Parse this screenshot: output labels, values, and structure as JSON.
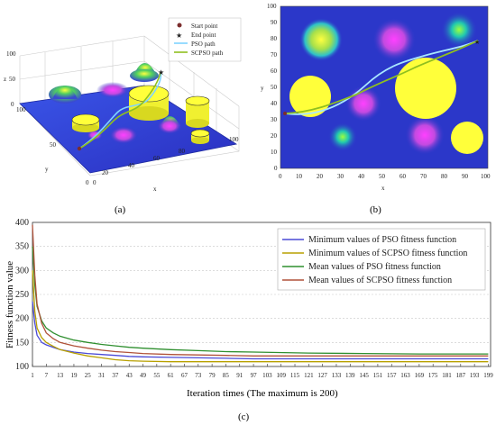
{
  "panel_a": {
    "caption": "(a)",
    "axis_x": "x",
    "axis_y": "y",
    "axis_z": "z",
    "z_ticks": [
      "0",
      "50",
      "100"
    ],
    "x_ticks": [
      "0",
      "20",
      "40",
      "60",
      "80",
      "100"
    ],
    "y_ticks": [
      "0",
      "50",
      "100"
    ],
    "legend": [
      {
        "label": "Start point",
        "marker": "circle",
        "color": "#7b2d2d"
      },
      {
        "label": "End point",
        "marker": "star",
        "color": "#222222"
      },
      {
        "label": "PSO path",
        "marker": "line",
        "color": "#7fd3ff"
      },
      {
        "label": "SCPSO path",
        "marker": "line",
        "color": "#8fbf1f"
      }
    ]
  },
  "panel_b": {
    "caption": "(b)",
    "axis_x": "x",
    "axis_y": "y",
    "x_ticks": [
      "0",
      "10",
      "20",
      "30",
      "40",
      "50",
      "60",
      "70",
      "80",
      "90",
      "100"
    ],
    "y_ticks": [
      "0",
      "10",
      "20",
      "30",
      "40",
      "50",
      "60",
      "70",
      "80",
      "90",
      "100"
    ],
    "background_color": "#2b37c9",
    "obstacle_color": "#ffff3a"
  },
  "panel_c": {
    "caption": "(c)",
    "xlabel": "Iteration times (The maximum is 200)",
    "ylabel": "Fitness function value"
  },
  "chart_data": {
    "type": "line",
    "xlabel": "Iteration times (The maximum is 200)",
    "ylabel": "Fitness function value",
    "xlim": [
      1,
      200
    ],
    "ylim": [
      100,
      400
    ],
    "x_ticks": [
      1,
      7,
      13,
      19,
      25,
      31,
      37,
      43,
      49,
      55,
      61,
      67,
      73,
      79,
      85,
      91,
      97,
      103,
      109,
      115,
      121,
      127,
      133,
      139,
      145,
      151,
      157,
      163,
      169,
      175,
      181,
      187,
      193,
      199
    ],
    "y_ticks": [
      100,
      150,
      200,
      250,
      300,
      350,
      400
    ],
    "grid": true,
    "legend_position": "top-right",
    "series": [
      {
        "name": "Minimum values of PSO fitness function",
        "color": "#4a4ad6",
        "x": [
          1,
          2,
          3,
          5,
          7,
          10,
          13,
          19,
          25,
          31,
          37,
          43,
          49,
          61,
          73,
          85,
          97,
          121,
          145,
          169,
          199
        ],
        "values": [
          235,
          190,
          165,
          150,
          145,
          140,
          135,
          130,
          127,
          125,
          123,
          121,
          120,
          119,
          118,
          117,
          116,
          116,
          116,
          116,
          116
        ]
      },
      {
        "name": "Minimum values of SCPSO fitness function",
        "color": "#b8a000",
        "x": [
          1,
          2,
          3,
          5,
          7,
          10,
          13,
          19,
          25,
          31,
          37,
          43,
          49,
          61,
          73,
          85,
          97,
          121,
          145,
          169,
          199
        ],
        "values": [
          300,
          215,
          180,
          160,
          150,
          142,
          135,
          128,
          122,
          118,
          114,
          112,
          111,
          110,
          110,
          110,
          110,
          110,
          110,
          110,
          110
        ]
      },
      {
        "name": "Mean values of PSO fitness function",
        "color": "#2f8f2f",
        "x": [
          1,
          2,
          3,
          5,
          7,
          10,
          13,
          19,
          25,
          31,
          37,
          43,
          49,
          61,
          73,
          85,
          97,
          121,
          145,
          169,
          199
        ],
        "values": [
          350,
          270,
          225,
          195,
          180,
          170,
          163,
          155,
          150,
          146,
          143,
          140,
          138,
          135,
          133,
          131,
          130,
          128,
          127,
          126,
          126
        ]
      },
      {
        "name": "Mean values of SCPSO fitness function",
        "color": "#b0523a",
        "x": [
          1,
          2,
          3,
          5,
          7,
          10,
          13,
          19,
          25,
          31,
          37,
          43,
          49,
          61,
          73,
          85,
          97,
          121,
          145,
          169,
          199
        ],
        "values": [
          395,
          290,
          230,
          190,
          170,
          158,
          150,
          143,
          138,
          134,
          131,
          129,
          127,
          125,
          124,
          123,
          122,
          122,
          122,
          122,
          122
        ]
      }
    ]
  }
}
